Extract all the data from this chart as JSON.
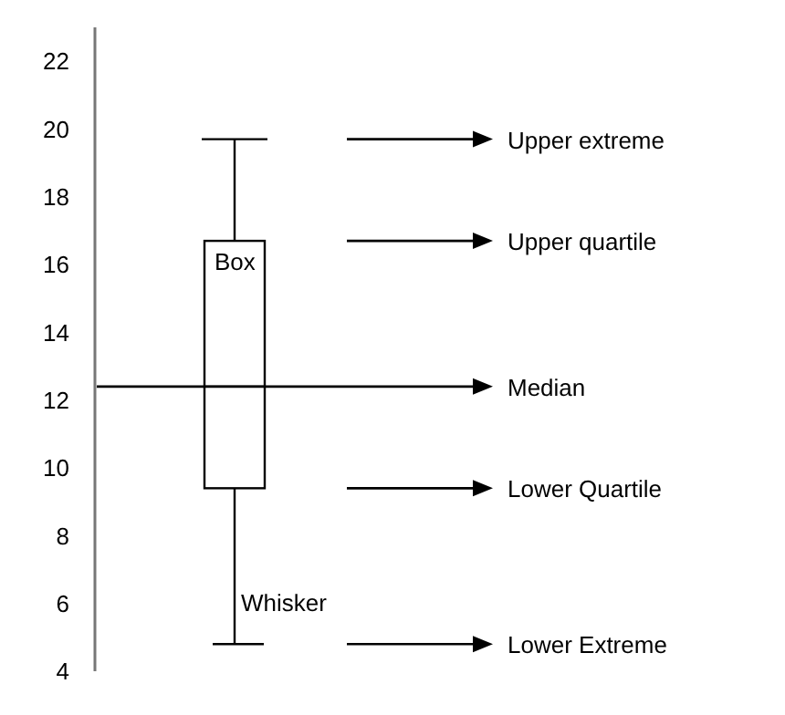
{
  "chart_data": {
    "type": "box",
    "categories": [
      null
    ],
    "series": [
      {
        "color": "#000000",
        "boxes": [
          {
            "low": 4.8,
            "q1": 9.4,
            "median": 12.4,
            "q3": 16.7,
            "high": 19.7
          }
        ]
      }
    ],
    "ylim": [
      4,
      23
    ],
    "yticks": [
      4,
      6,
      8,
      10,
      12,
      14,
      16,
      18,
      20,
      22
    ],
    "grid": false,
    "tick_labels": "y",
    "annotations": [
      "Upper extreme",
      "Upper quartile",
      "Median",
      "Lower Quartile",
      "Lower Extreme",
      "Box",
      "Whisker"
    ]
  }
}
